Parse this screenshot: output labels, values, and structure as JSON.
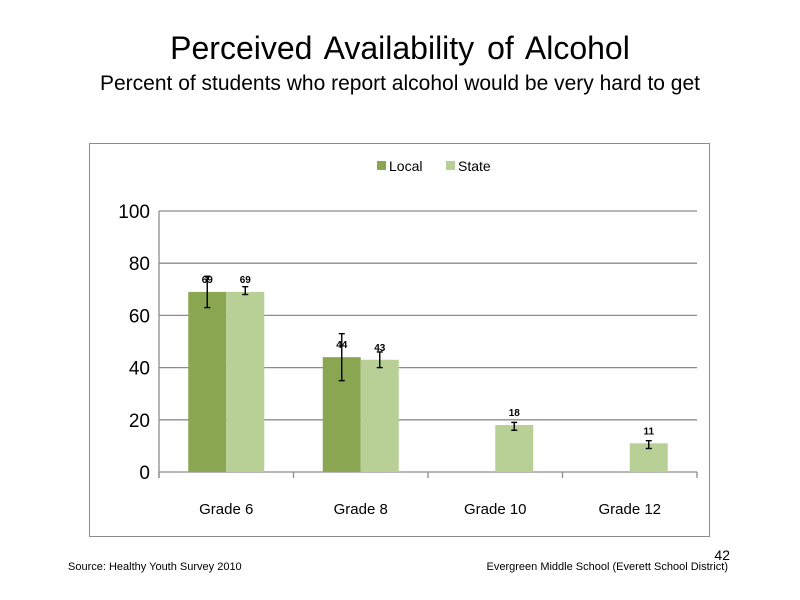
{
  "slide": {
    "title": "Perceived  Availability  of Alcohol",
    "subtitle": "Percent of students  who report alcohol would be very hard to get",
    "source": "Source: Healthy Youth Survey 2010",
    "school": "Evergreen Middle  School (Everett School District)",
    "page_number": "42"
  },
  "chart_data": {
    "type": "bar",
    "categories": [
      "Grade 6",
      "Grade 8",
      "Grade 10",
      "Grade 12"
    ],
    "series": [
      {
        "name": "Local",
        "color": "#8aa650",
        "values": [
          69,
          44,
          null,
          null
        ],
        "error_low": [
          63,
          35,
          null,
          null
        ],
        "error_high": [
          75,
          53,
          null,
          null
        ]
      },
      {
        "name": "State",
        "color": "#b8cf96",
        "values": [
          69,
          43,
          18,
          11
        ],
        "error_low": [
          68,
          40,
          16,
          9
        ],
        "error_high": [
          71,
          46,
          19,
          12
        ]
      }
    ],
    "data_labels": [
      [
        "69",
        "44",
        "",
        ""
      ],
      [
        "69",
        "43",
        "18",
        "11"
      ]
    ],
    "ylim": [
      0,
      100
    ],
    "yticks": [
      0,
      20,
      40,
      60,
      80,
      100
    ],
    "ytick_labels": [
      "0",
      "20",
      "40",
      "60",
      "80",
      "100"
    ],
    "grid": true,
    "legend": "top-center",
    "gridline_color": "#8c8c8c"
  }
}
